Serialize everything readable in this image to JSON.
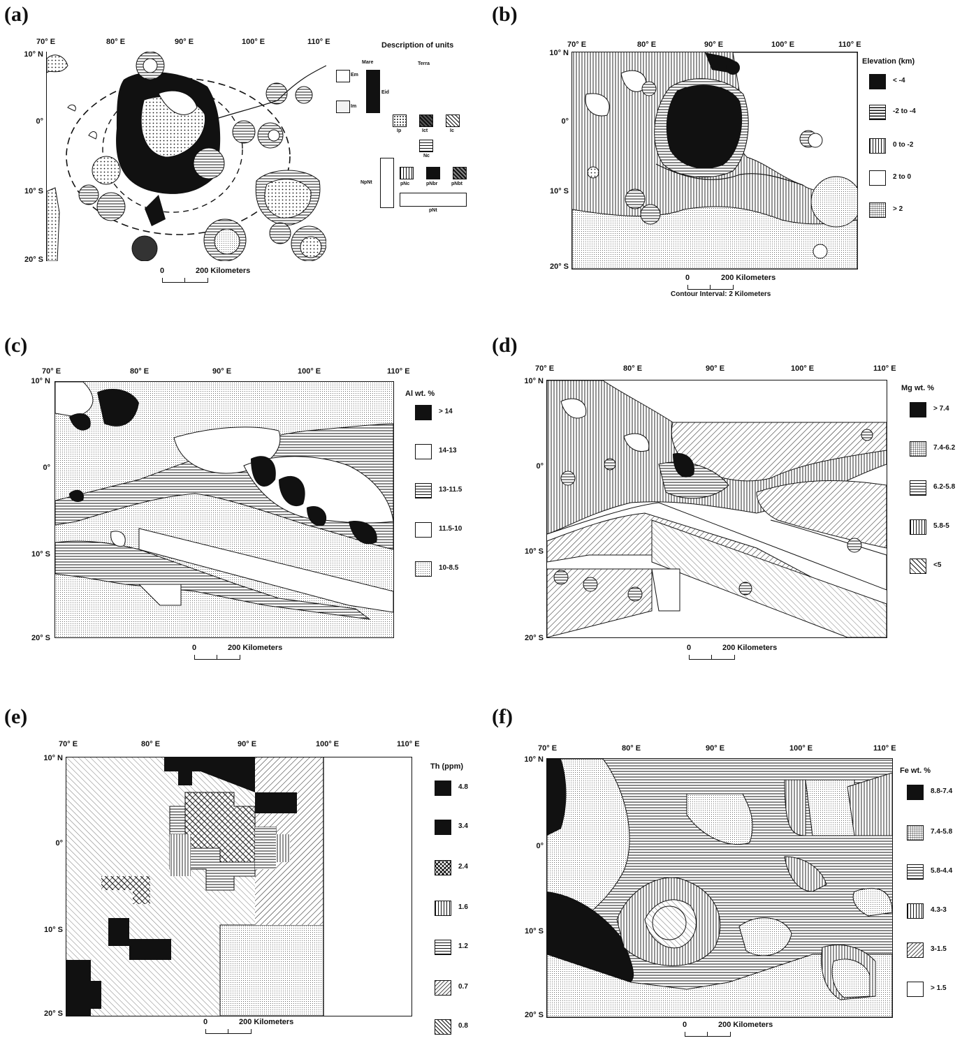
{
  "patterns": {
    "black": "#111111"
  },
  "panels": {
    "a": {
      "letter": "(a)",
      "lon_labels": [
        "70° E",
        "80° E",
        "90° E",
        "100° E",
        "110° E"
      ],
      "lat_labels": [
        "10° N",
        "0°",
        "10° S",
        "20° S"
      ],
      "scale_zero": "0",
      "scale_label": "200 Kilometers",
      "legend": {
        "title": "Description of units",
        "mare_label": "Mare",
        "terra_label": "Terra",
        "units": [
          "Em",
          "Eid",
          "Im",
          "Ip",
          "Ict",
          "Ic",
          "Nc",
          "NpNt",
          "pNc",
          "pNbr",
          "pNbt",
          "pNt"
        ]
      }
    },
    "b": {
      "letter": "(b)",
      "lon_labels": [
        "70° E",
        "80° E",
        "90° E",
        "100° E",
        "110° E"
      ],
      "lat_labels": [
        "10° N",
        "0°",
        "10° S",
        "20° S"
      ],
      "scale_zero": "0",
      "scale_label": "200 Kilometers",
      "contour_interval": "Contour Interval: 2 Kilometers",
      "legend_title": "Elevation (km)",
      "legend_items": [
        "< -4",
        "-2 to -4",
        "0 to -2",
        "2 to 0",
        "> 2"
      ]
    },
    "c": {
      "letter": "(c)",
      "lon_labels": [
        "70° E",
        "80° E",
        "90° E",
        "100° E",
        "110° E"
      ],
      "lat_labels": [
        "10° N",
        "0°",
        "10° S",
        "20° S"
      ],
      "scale_zero": "0",
      "scale_label": "200 Kilometers",
      "legend_title": "Al wt. %",
      "legend_items": [
        "> 14",
        "14-13",
        "13-11.5",
        "11.5-10",
        "10-8.5"
      ]
    },
    "d": {
      "letter": "(d)",
      "lon_labels": [
        "70° E",
        "80° E",
        "90° E",
        "100° E",
        "110° E"
      ],
      "lat_labels": [
        "10° N",
        "0°",
        "10° S",
        "20° S"
      ],
      "scale_zero": "0",
      "scale_label": "200 Kilometers",
      "legend_title": "Mg wt. %",
      "legend_items": [
        "> 7.4",
        "7.4-6.2",
        "6.2-5.8",
        "5.8-5",
        "<5"
      ]
    },
    "e": {
      "letter": "(e)",
      "lon_labels": [
        "70° E",
        "80° E",
        "90° E",
        "100° E",
        "110° E"
      ],
      "lat_labels": [
        "10° N",
        "0°",
        "10° S",
        "20° S"
      ],
      "scale_zero": "0",
      "scale_label": "200 Kilometers",
      "legend_title": "Th (ppm)",
      "legend_items": [
        "4.8",
        "3.4",
        "2.4",
        "1.6",
        "1.2",
        "0.7",
        "0.8"
      ]
    },
    "f": {
      "letter": "(f)",
      "lon_labels": [
        "70° E",
        "80° E",
        "90° E",
        "100° E",
        "110° E"
      ],
      "lat_labels": [
        "10° N",
        "0°",
        "10° S",
        "20° S"
      ],
      "scale_zero": "0",
      "scale_label": "200 Kilometers",
      "legend_title": "Fe wt. %",
      "legend_items": [
        "8.8-7.4",
        "7.4-5.8",
        "5.8-4.4",
        "4.3-3",
        "3-1.5",
        "> 1.5"
      ]
    }
  }
}
